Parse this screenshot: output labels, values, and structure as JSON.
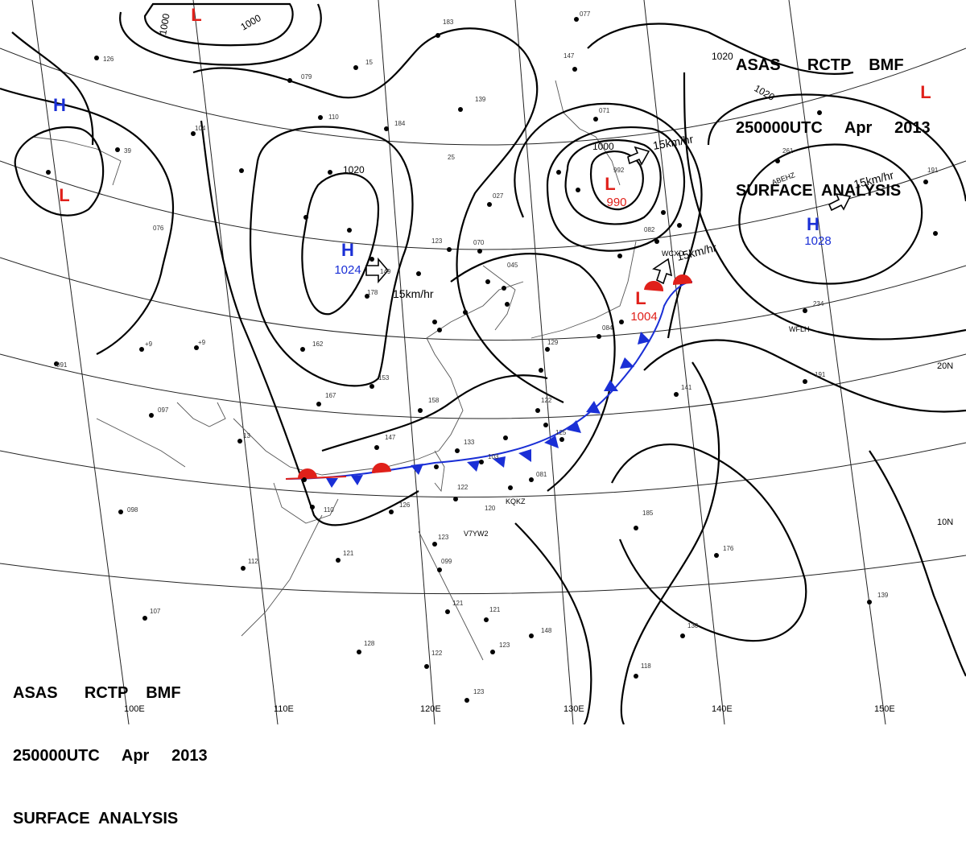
{
  "header": {
    "line1": "ASAS      RCTP    BMF",
    "line2": "250000UTC     Apr     2013",
    "line3": "SURFACE  ANALYSIS"
  },
  "pressure_centers": [
    {
      "type": "H",
      "value": "1024",
      "color": "#1a2fd6"
    },
    {
      "type": "H",
      "value": "1028",
      "color": "#1a2fd6"
    },
    {
      "type": "L",
      "value": "990",
      "color": "#e0201a"
    },
    {
      "type": "L",
      "value": "1004",
      "color": "#e0201a"
    },
    {
      "type": "H",
      "value": "",
      "color": "#1a2fd6"
    },
    {
      "type": "L",
      "value": "",
      "color": "#e0201a"
    },
    {
      "type": "L",
      "value": "",
      "color": "#e0201a"
    },
    {
      "type": "L",
      "value": "",
      "color": "#e0201a"
    }
  ],
  "isobar_labels": [
    "1000",
    "1000",
    "1020",
    "1000",
    "1020",
    "1020"
  ],
  "motion_labels": [
    "15km/hr",
    "15km/hr",
    "15km/hr",
    "15km/hr"
  ],
  "longitude_labels": [
    "100E",
    "110E",
    "120E",
    "130E",
    "140E",
    "150E"
  ],
  "latitude_labels": [
    "20N",
    "10N"
  ],
  "stations": [
    {
      "code": "ABEHZ"
    },
    {
      "code": "WFLH"
    },
    {
      "code": "KQKZ"
    },
    {
      "code": "V7YW2"
    },
    {
      "code": "WCXD"
    }
  ],
  "colors": {
    "high": "#1a2fd6",
    "low": "#e0201a",
    "isobar": "#000000",
    "grid": "#000000"
  }
}
